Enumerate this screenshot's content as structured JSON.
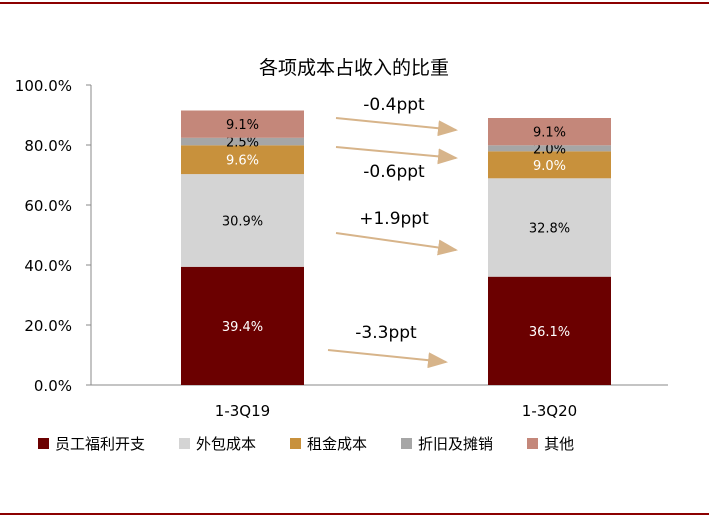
{
  "chart_data": {
    "type": "bar",
    "stacked": true,
    "title": "各项成本占收入的比重",
    "categories": [
      "1-3Q19",
      "1-3Q20"
    ],
    "ylim": [
      0,
      100
    ],
    "yticks": [
      "0.0%",
      "20.0%",
      "40.0%",
      "60.0%",
      "80.0%",
      "100.0%"
    ],
    "series": [
      {
        "name": "员工福利开支",
        "color": "#6b0000",
        "values": [
          39.4,
          36.1
        ],
        "labels": [
          "39.4%",
          "36.1%"
        ]
      },
      {
        "name": "外包成本",
        "color": "#d4d4d4",
        "values": [
          30.9,
          32.8
        ],
        "labels": [
          "30.9%",
          "32.8%"
        ]
      },
      {
        "name": "租金成本",
        "color": "#c8913c",
        "values": [
          9.6,
          9.0
        ],
        "labels": [
          "9.6%",
          "9.0%"
        ]
      },
      {
        "name": "折旧及摊销",
        "color": "#a6a6a6",
        "values": [
          2.5,
          2.0
        ],
        "labels": [
          "2.5%",
          "2.0%"
        ]
      },
      {
        "name": "其他",
        "color": "#c4877a",
        "values": [
          9.1,
          9.1
        ],
        "labels": [
          "9.1%",
          "9.1%"
        ]
      }
    ],
    "annotations": [
      "-0.4ppt",
      "-0.6ppt",
      "+1.9ppt",
      "-3.3ppt"
    ],
    "arrow_color": "#d7b48a",
    "legend_position": "bottom",
    "grid": false
  }
}
